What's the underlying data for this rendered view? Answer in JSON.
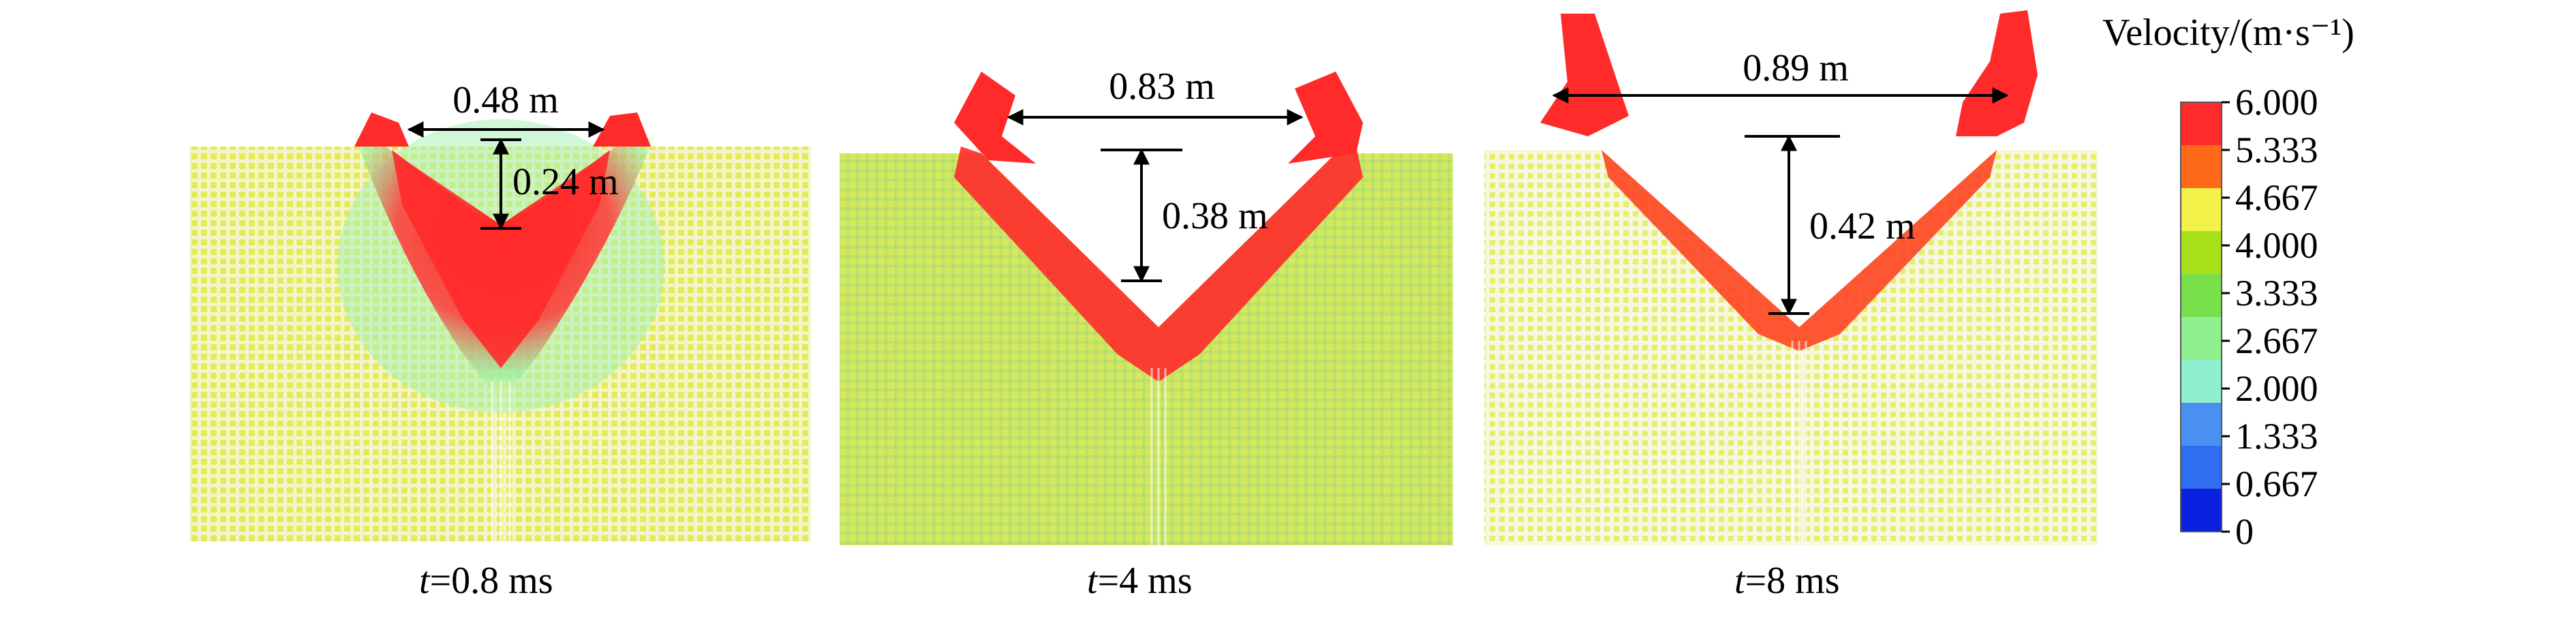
{
  "panels": [
    {
      "caption_var": "t",
      "caption_value": "=0.8 ms",
      "width_label": "0.48 m",
      "depth_label": "0.24 m"
    },
    {
      "caption_var": "t",
      "caption_value": "=4 ms",
      "width_label": "0.83 m",
      "depth_label": "0.38 m"
    },
    {
      "caption_var": "t",
      "caption_value": "=8 ms",
      "width_label": "0.89 m",
      "depth_label": "0.42 m"
    }
  ],
  "legend": {
    "title": "Velocity/(m·s⁻¹)",
    "ticks": [
      "6.000",
      "5.333",
      "4.667",
      "4.000",
      "3.333",
      "2.667",
      "2.000",
      "1.333",
      "0.667",
      "0"
    ],
    "colors": [
      "#ff2b2b",
      "#ff6a1a",
      "#f2f24a",
      "#a8e01c",
      "#78e04a",
      "#8ef08e",
      "#8ff0d0",
      "#4a90f0",
      "#2f6ef0",
      "#0a22e0"
    ]
  },
  "colors": {
    "soil": "#e6ec5a",
    "soil_green": "#b6e36a",
    "high_velocity": "#ff2020",
    "annotation": "#000000"
  }
}
